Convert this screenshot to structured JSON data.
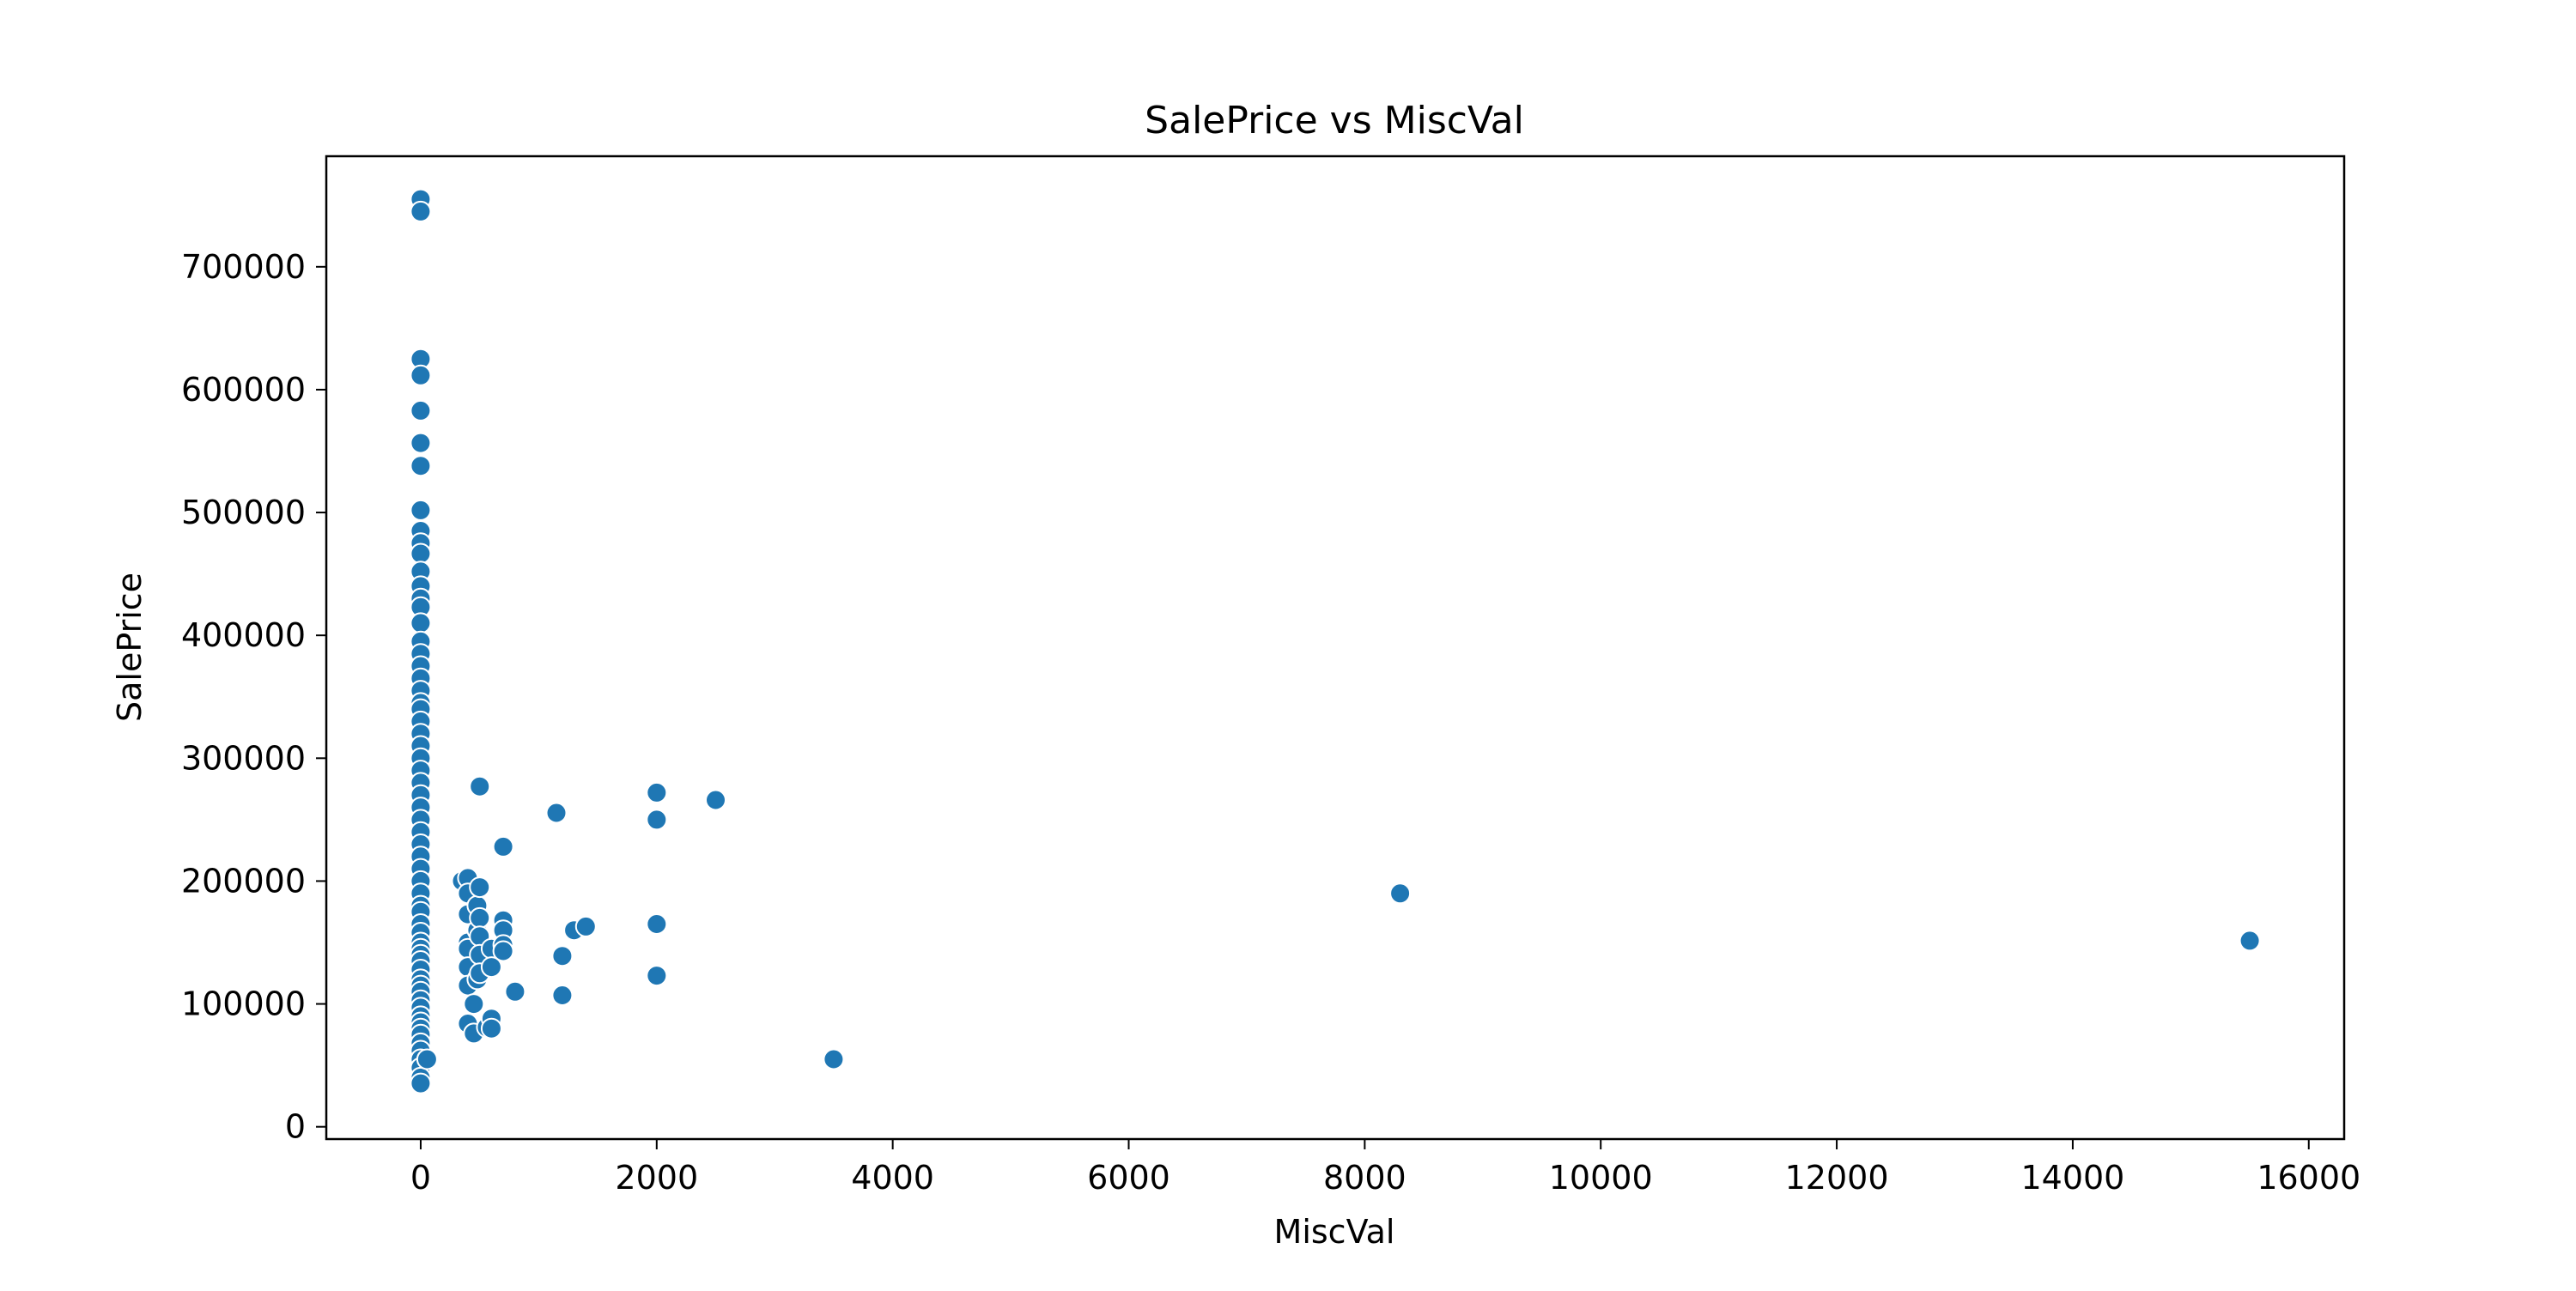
{
  "chart_data": {
    "type": "scatter",
    "title": "SalePrice vs MiscVal",
    "xlabel": "MiscVal",
    "ylabel": "SalePrice",
    "xlim": [
      -800,
      16300
    ],
    "ylim": [
      -10000,
      790000
    ],
    "x_ticks": [
      0,
      2000,
      4000,
      6000,
      8000,
      10000,
      12000,
      14000,
      16000
    ],
    "y_ticks": [
      0,
      100000,
      200000,
      300000,
      400000,
      500000,
      600000,
      700000
    ],
    "grid": false,
    "legend": "none",
    "marker_color": "#1f77b4",
    "marker_edge_color": "#ffffff",
    "points": [
      {
        "x": 0,
        "y": 755000
      },
      {
        "x": 0,
        "y": 745000
      },
      {
        "x": 0,
        "y": 625000
      },
      {
        "x": 0,
        "y": 611657
      },
      {
        "x": 0,
        "y": 582933
      },
      {
        "x": 0,
        "y": 556581
      },
      {
        "x": 0,
        "y": 538000
      },
      {
        "x": 0,
        "y": 501837
      },
      {
        "x": 0,
        "y": 485000
      },
      {
        "x": 0,
        "y": 475000
      },
      {
        "x": 0,
        "y": 466500
      },
      {
        "x": 0,
        "y": 451950
      },
      {
        "x": 0,
        "y": 440000
      },
      {
        "x": 0,
        "y": 430000
      },
      {
        "x": 0,
        "y": 423000
      },
      {
        "x": 0,
        "y": 410000
      },
      {
        "x": 0,
        "y": 395000
      },
      {
        "x": 0,
        "y": 385000
      },
      {
        "x": 0,
        "y": 375000
      },
      {
        "x": 0,
        "y": 365000
      },
      {
        "x": 0,
        "y": 355000
      },
      {
        "x": 0,
        "y": 345000
      },
      {
        "x": 0,
        "y": 340000
      },
      {
        "x": 0,
        "y": 330000
      },
      {
        "x": 0,
        "y": 320000
      },
      {
        "x": 0,
        "y": 310000
      },
      {
        "x": 0,
        "y": 300000
      },
      {
        "x": 0,
        "y": 290000
      },
      {
        "x": 0,
        "y": 280000
      },
      {
        "x": 0,
        "y": 270000
      },
      {
        "x": 0,
        "y": 260000
      },
      {
        "x": 0,
        "y": 250000
      },
      {
        "x": 0,
        "y": 240000
      },
      {
        "x": 0,
        "y": 230000
      },
      {
        "x": 0,
        "y": 220000
      },
      {
        "x": 0,
        "y": 210000
      },
      {
        "x": 0,
        "y": 200000
      },
      {
        "x": 0,
        "y": 190000
      },
      {
        "x": 0,
        "y": 180000
      },
      {
        "x": 0,
        "y": 175000
      },
      {
        "x": 0,
        "y": 165000
      },
      {
        "x": 0,
        "y": 158000
      },
      {
        "x": 0,
        "y": 150000
      },
      {
        "x": 0,
        "y": 145000
      },
      {
        "x": 0,
        "y": 140000
      },
      {
        "x": 0,
        "y": 135000
      },
      {
        "x": 0,
        "y": 128000
      },
      {
        "x": 0,
        "y": 120000
      },
      {
        "x": 0,
        "y": 115000
      },
      {
        "x": 0,
        "y": 110000
      },
      {
        "x": 0,
        "y": 103000
      },
      {
        "x": 0,
        "y": 97000
      },
      {
        "x": 0,
        "y": 90000
      },
      {
        "x": 0,
        "y": 85000
      },
      {
        "x": 0,
        "y": 80000
      },
      {
        "x": 0,
        "y": 75000
      },
      {
        "x": 0,
        "y": 68000
      },
      {
        "x": 0,
        "y": 62000
      },
      {
        "x": 0,
        "y": 55000
      },
      {
        "x": 0,
        "y": 48000
      },
      {
        "x": 0,
        "y": 40000
      },
      {
        "x": 0,
        "y": 35311
      },
      {
        "x": 54,
        "y": 55000
      },
      {
        "x": 350,
        "y": 200000
      },
      {
        "x": 400,
        "y": 202500
      },
      {
        "x": 400,
        "y": 190000
      },
      {
        "x": 400,
        "y": 173000
      },
      {
        "x": 400,
        "y": 150000
      },
      {
        "x": 400,
        "y": 145000
      },
      {
        "x": 400,
        "y": 130000
      },
      {
        "x": 400,
        "y": 115000
      },
      {
        "x": 400,
        "y": 84000
      },
      {
        "x": 450,
        "y": 100000
      },
      {
        "x": 450,
        "y": 76000
      },
      {
        "x": 480,
        "y": 180000
      },
      {
        "x": 480,
        "y": 160000
      },
      {
        "x": 480,
        "y": 120000
      },
      {
        "x": 500,
        "y": 277000
      },
      {
        "x": 500,
        "y": 195000
      },
      {
        "x": 500,
        "y": 170000
      },
      {
        "x": 500,
        "y": 155000
      },
      {
        "x": 500,
        "y": 140000
      },
      {
        "x": 500,
        "y": 125000
      },
      {
        "x": 560,
        "y": 81000
      },
      {
        "x": 600,
        "y": 145000
      },
      {
        "x": 600,
        "y": 130000
      },
      {
        "x": 600,
        "y": 88000
      },
      {
        "x": 600,
        "y": 80000
      },
      {
        "x": 700,
        "y": 228000
      },
      {
        "x": 700,
        "y": 168000
      },
      {
        "x": 700,
        "y": 160000
      },
      {
        "x": 700,
        "y": 148000
      },
      {
        "x": 700,
        "y": 143000
      },
      {
        "x": 800,
        "y": 110000
      },
      {
        "x": 1150,
        "y": 255500
      },
      {
        "x": 1200,
        "y": 139000
      },
      {
        "x": 1200,
        "y": 107000
      },
      {
        "x": 1300,
        "y": 160000
      },
      {
        "x": 1400,
        "y": 163000
      },
      {
        "x": 2000,
        "y": 272000
      },
      {
        "x": 2000,
        "y": 250000
      },
      {
        "x": 2000,
        "y": 165000
      },
      {
        "x": 2000,
        "y": 123000
      },
      {
        "x": 2500,
        "y": 266000
      },
      {
        "x": 3500,
        "y": 55000
      },
      {
        "x": 8300,
        "y": 190000
      },
      {
        "x": 15500,
        "y": 151500
      }
    ]
  }
}
